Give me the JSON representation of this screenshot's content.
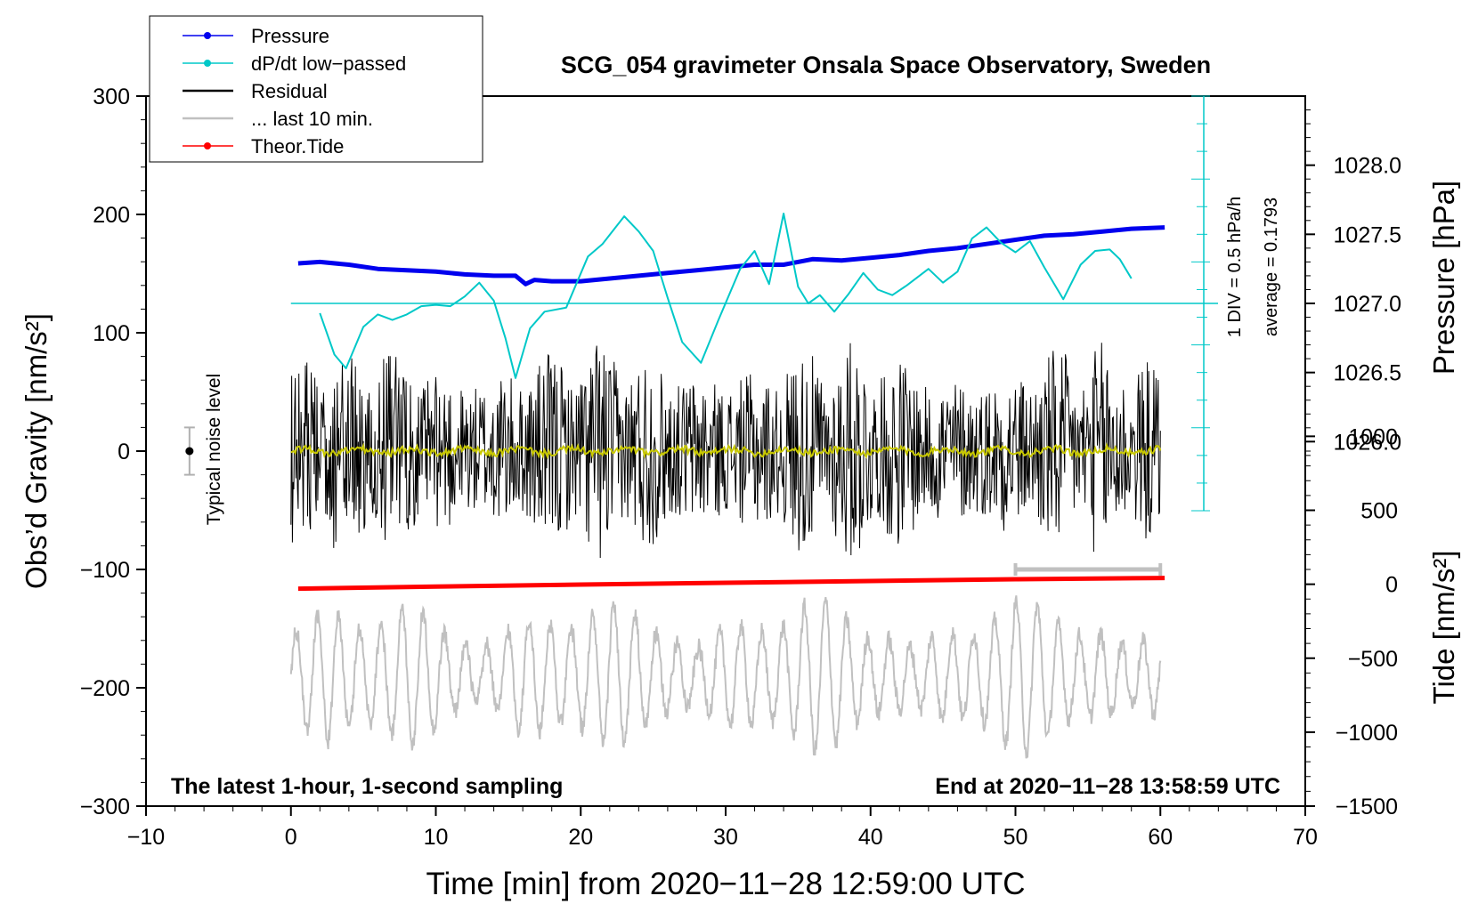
{
  "chart_data": {
    "type": "line",
    "title": "SCG_054 gravimeter Onsala Space Observatory, Sweden",
    "xlabel": "Time [min] from 2020−11−28 12:59:00 UTC",
    "ylabel_left": "Obs’d Gravity [nm/s²]",
    "ylabel_right_top": "Pressure [hPa]",
    "ylabel_right_bottom": "Tide [nm/s²]",
    "xlim": [
      -10,
      70
    ],
    "ylim": [
      -300,
      300
    ],
    "pressure_ylim": [
      1025.5,
      1028.5
    ],
    "tide_ylim": [
      -1500,
      3300
    ],
    "x_ticks": [
      "−10",
      "0",
      "10",
      "20",
      "30",
      "40",
      "50",
      "60",
      "70"
    ],
    "x_tick_values": [
      -10,
      0,
      10,
      20,
      30,
      40,
      50,
      60,
      70
    ],
    "y_ticks": [
      "300",
      "200",
      "100",
      "0",
      "−100",
      "−200",
      "−300"
    ],
    "y_tick_values": [
      300,
      200,
      100,
      0,
      -100,
      -200,
      -300
    ],
    "pressure_ticks": [
      "1028.0",
      "1027.5",
      "1027.0",
      "1026.5",
      "1026.0"
    ],
    "pressure_tick_values": [
      1028.0,
      1027.5,
      1027.0,
      1026.5,
      1026.0
    ],
    "tide_ticks": [
      "1000",
      "500",
      "0",
      "−500",
      "−1000",
      "−1500"
    ],
    "tide_tick_values": [
      1000,
      500,
      0,
      -500,
      -1000,
      -1500
    ],
    "legend": [
      {
        "label": "Pressure",
        "color": "#0000ee",
        "marker": true
      },
      {
        "label": "dP/dt low−passed",
        "color": "#00c8c8",
        "marker": true
      },
      {
        "label": "Residual",
        "color": "#000000",
        "marker": false
      },
      {
        "label": "... last 10 min.",
        "color": "#c0c0c0",
        "marker": false
      },
      {
        "label": "Theor.Tide",
        "color": "#ff0000",
        "marker": true
      }
    ],
    "legend_position": "top-left",
    "annotations": {
      "noise_label": "Typical noise level",
      "dpdt_scale": "1 DIV = 0.5 hPa/h",
      "dpdt_average": "average = 0.1793",
      "bottom_left": "The latest 1-hour, 1-second sampling",
      "bottom_right": "End at 2020−11−28 13:58:59 UTC"
    },
    "dpdt_zero_level_hpa": 1027.0,
    "noise_bar": {
      "x": -7,
      "center": 0,
      "half_range": 20
    },
    "last10_bar": {
      "x_start": 50,
      "x_end": 60,
      "y": -100
    },
    "series": [
      {
        "name": "Pressure",
        "axis": "pressure",
        "color": "#0000ee",
        "x": [
          0.5,
          2,
          4,
          6,
          8,
          10,
          12,
          14,
          15.5,
          16.2,
          16.8,
          18,
          20,
          22,
          24,
          26,
          28,
          30,
          32,
          34,
          36,
          38,
          40,
          42,
          44,
          46,
          48,
          50,
          52,
          54,
          56,
          58,
          60.3
        ],
        "y": [
          1027.29,
          1027.3,
          1027.28,
          1027.25,
          1027.24,
          1027.23,
          1027.21,
          1027.2,
          1027.2,
          1027.14,
          1027.17,
          1027.16,
          1027.16,
          1027.18,
          1027.2,
          1027.22,
          1027.24,
          1027.26,
          1027.28,
          1027.28,
          1027.32,
          1027.31,
          1027.33,
          1027.35,
          1027.38,
          1027.4,
          1027.43,
          1027.46,
          1027.49,
          1027.5,
          1027.52,
          1027.54,
          1027.55
        ]
      },
      {
        "name": "dP/dt low-passed",
        "axis": "pressure",
        "color": "#00c8c8",
        "x": [
          2,
          3,
          3.8,
          5,
          6,
          7,
          8,
          9,
          10,
          11,
          12,
          13,
          14,
          14.8,
          15.5,
          16.5,
          17.5,
          19,
          20.5,
          21.5,
          23,
          24,
          25,
          26,
          27,
          28.3,
          29.5,
          31,
          32,
          33,
          34,
          35,
          35.7,
          36.5,
          37.5,
          38.5,
          39.5,
          40.5,
          41.5,
          42.5,
          44,
          45,
          46,
          47,
          48,
          49,
          50,
          51,
          52,
          53.3,
          54.5,
          55.5,
          56.5,
          57.2,
          58
        ],
        "y": [
          1026.93,
          1026.63,
          1026.53,
          1026.83,
          1026.92,
          1026.88,
          1026.92,
          1026.98,
          1026.99,
          1026.98,
          1027.05,
          1027.15,
          1027.02,
          1026.75,
          1026.46,
          1026.82,
          1026.94,
          1026.97,
          1027.34,
          1027.43,
          1027.63,
          1027.52,
          1027.38,
          1027.04,
          1026.72,
          1026.57,
          1026.88,
          1027.25,
          1027.38,
          1027.14,
          1027.65,
          1027.12,
          1027.0,
          1027.06,
          1026.94,
          1027.07,
          1027.22,
          1027.1,
          1027.06,
          1027.13,
          1027.25,
          1027.15,
          1027.23,
          1027.47,
          1027.55,
          1027.44,
          1027.37,
          1027.45,
          1027.26,
          1027.03,
          1027.28,
          1027.38,
          1027.39,
          1027.32,
          1027.18
        ]
      },
      {
        "name": "Theor.Tide",
        "axis": "tide",
        "color": "#ff0000",
        "x": [
          0.5,
          10,
          20,
          30,
          40,
          50,
          60.3
        ],
        "y": [
          -30,
          -16,
          -2,
          10,
          22,
          34,
          42
        ]
      }
    ]
  }
}
